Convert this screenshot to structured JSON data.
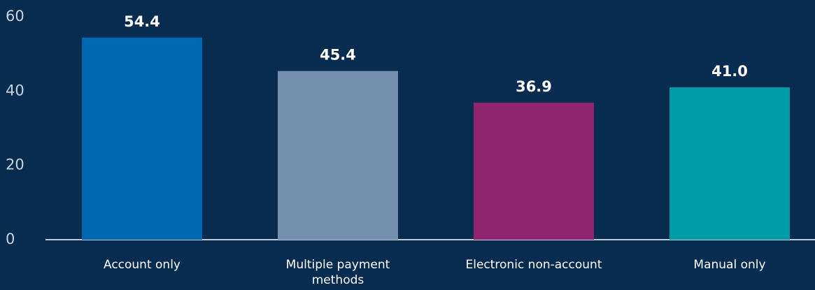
{
  "chart_data": {
    "type": "bar",
    "categories": [
      "Account only",
      "Multiple payment methods",
      "Electronic non-account",
      "Manual only"
    ],
    "values": [
      54.4,
      45.4,
      36.9,
      41.0
    ],
    "value_labels": [
      "54.4",
      "45.4",
      "36.9",
      "41.0"
    ],
    "colors": [
      "#0067b1",
      "#7590ae",
      "#91246e",
      "#009ca6"
    ],
    "ylim": [
      0,
      60
    ],
    "yticks": [
      0,
      20,
      40,
      60
    ],
    "grid": false
  }
}
